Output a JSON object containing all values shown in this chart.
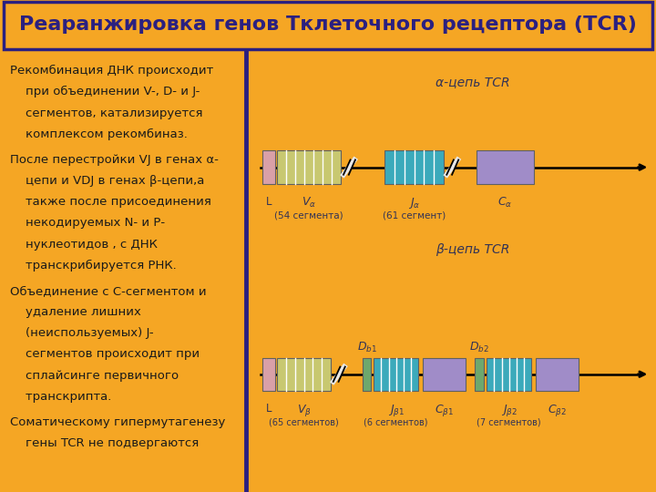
{
  "title": "Реаранжировка генов Тклеточного рецептора (TCR)",
  "title_bg": "#F5A624",
  "title_fg": "#2B2080",
  "title_border": "#2B2080",
  "left_bg": "#F5A624",
  "right_bg": "#E8E8E8",
  "left_paragraphs": [
    "Рекомбинация ДНК происходит\n    при объединении V-, D- и J-\n    сегментов, катализируется\n    комплексом рекомбиназ.",
    "После перестройки VJ в генах α-\n    цепи и VDJ в генах β-цепи,а\n    также после присоединения\n    некодируемых N- и Р-\n    нуклеотидов , с ДНК\n    транскрибируется РНК.",
    "Объединение с С-сегментом и\n    удаление лишних\n    (неиспользуемых) J-\n    сегментов происходит при\n    сплайсинге первичного\n    транскрипта.",
    "Соматическому гипермутагенезу\n    гены TCR не подвергаются"
  ],
  "left_text_color": "#1A1A1A",
  "alpha_title": "α-цепь TCR",
  "beta_title": "β-цепь TCR",
  "color_L": "#D9A0A8",
  "color_V_alpha": "#C8C870",
  "color_J_alpha": "#3BAABB",
  "color_C_alpha": "#A08CC8",
  "color_V_beta": "#C8C870",
  "color_J_beta": "#3BAABB",
  "color_C_beta": "#A08CC8",
  "color_D": "#6DA86D",
  "label_color": "#333355",
  "divider_color": "#2B2080"
}
